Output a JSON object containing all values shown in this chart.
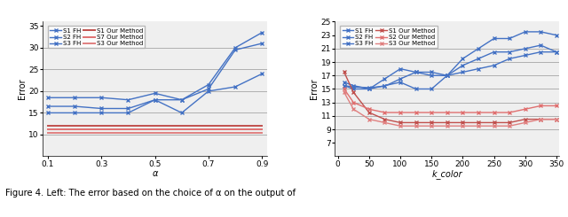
{
  "left": {
    "xlabel": "α",
    "ylabel": "Error",
    "xlim": [
      0.08,
      0.92
    ],
    "ylim": [
      5,
      36
    ],
    "xticks": [
      0.1,
      0.3,
      0.5,
      0.7,
      0.9
    ],
    "yticks": [
      10,
      15,
      20,
      25,
      30,
      35
    ],
    "grid_y": [
      10,
      15,
      20,
      25,
      30
    ],
    "blue_lines": {
      "S1_FH": {
        "x": [
          0.1,
          0.2,
          0.3,
          0.4,
          0.5,
          0.6,
          0.7,
          0.8,
          0.9
        ],
        "y": [
          18.5,
          18.5,
          18.5,
          18.0,
          19.5,
          18.0,
          21.5,
          30.0,
          33.5
        ]
      },
      "S2_FH": {
        "x": [
          0.1,
          0.2,
          0.3,
          0.4,
          0.5,
          0.6,
          0.7,
          0.8,
          0.9
        ],
        "y": [
          16.5,
          16.5,
          16.0,
          16.0,
          18.0,
          18.0,
          20.5,
          29.5,
          31.0
        ]
      },
      "S3_FH": {
        "x": [
          0.1,
          0.2,
          0.3,
          0.4,
          0.5,
          0.6,
          0.7,
          0.8,
          0.9
        ],
        "y": [
          15.0,
          15.0,
          15.0,
          15.0,
          18.0,
          15.0,
          20.0,
          21.0,
          24.0
        ]
      }
    },
    "red_lines": {
      "S1_OM": {
        "x": [
          0.1,
          0.9
        ],
        "y": [
          12.0,
          12.0
        ]
      },
      "S7_OM": {
        "x": [
          0.1,
          0.9
        ],
        "y": [
          11.2,
          11.2
        ]
      },
      "S3_OM": {
        "x": [
          0.1,
          0.9
        ],
        "y": [
          10.3,
          10.3
        ]
      }
    },
    "legend_labels_blue": [
      "S1 FH",
      "S2 FH",
      "S3 FH"
    ],
    "legend_labels_red": [
      "S1 Our Method",
      "S7 Our Method",
      "S3 Our Method"
    ]
  },
  "right": {
    "xlabel": "k_color",
    "ylabel": "Error",
    "xlim": [
      -5,
      355
    ],
    "ylim": [
      5,
      25
    ],
    "xticks": [
      0,
      50,
      100,
      150,
      200,
      250,
      300,
      350
    ],
    "yticks": [
      7,
      9,
      11,
      13,
      15,
      17,
      19,
      21,
      23,
      25
    ],
    "grid_y": [
      9,
      11,
      13,
      15,
      17,
      19,
      21
    ],
    "blue_lines": {
      "S1_FH": {
        "x": [
          10,
          25,
          50,
          75,
          100,
          125,
          150,
          175,
          200,
          225,
          250,
          275,
          300,
          325,
          350
        ],
        "y": [
          15.5,
          15.3,
          15.2,
          15.4,
          16.5,
          17.5,
          17.0,
          17.0,
          19.5,
          21.0,
          22.5,
          22.5,
          23.5,
          23.5,
          23.0
        ]
      },
      "S2_FH": {
        "x": [
          10,
          25,
          50,
          75,
          100,
          125,
          150,
          175,
          200,
          225,
          250,
          275,
          300,
          325,
          350
        ],
        "y": [
          15.5,
          15.0,
          15.0,
          15.5,
          16.0,
          15.0,
          15.0,
          17.0,
          18.5,
          19.5,
          20.5,
          20.5,
          21.0,
          21.5,
          20.5
        ]
      },
      "S3_FH": {
        "x": [
          10,
          25,
          50,
          75,
          100,
          125,
          150,
          175,
          200,
          225,
          250,
          275,
          300,
          325,
          350
        ],
        "y": [
          16.0,
          15.5,
          15.0,
          16.5,
          18.0,
          17.5,
          17.5,
          17.0,
          17.5,
          18.0,
          18.5,
          19.5,
          20.0,
          20.5,
          20.5
        ]
      }
    },
    "red_lines": {
      "S1_OM": {
        "x": [
          10,
          25,
          50,
          75,
          100,
          125,
          150,
          175,
          200,
          225,
          250,
          275,
          300,
          325,
          350
        ],
        "y": [
          17.5,
          14.5,
          11.5,
          10.5,
          10.0,
          10.0,
          10.0,
          10.0,
          10.0,
          10.0,
          10.0,
          10.0,
          10.5,
          10.5,
          10.5
        ]
      },
      "S2_OM": {
        "x": [
          10,
          25,
          50,
          75,
          100,
          125,
          150,
          175,
          200,
          225,
          250,
          275,
          300,
          325,
          350
        ],
        "y": [
          15.0,
          13.0,
          12.0,
          11.5,
          11.5,
          11.5,
          11.5,
          11.5,
          11.5,
          11.5,
          11.5,
          11.5,
          12.0,
          12.5,
          12.5
        ]
      },
      "S3_OM": {
        "x": [
          10,
          25,
          50,
          75,
          100,
          125,
          150,
          175,
          200,
          225,
          250,
          275,
          300,
          325,
          350
        ],
        "y": [
          14.5,
          12.0,
          10.5,
          10.0,
          9.5,
          9.5,
          9.5,
          9.5,
          9.5,
          9.5,
          9.5,
          9.5,
          10.0,
          10.5,
          10.5
        ]
      }
    },
    "legend_labels_blue": [
      "S1 FH",
      "S2 FH",
      "S3 FH"
    ],
    "legend_labels_red": [
      "S1 Our Method",
      "S2 Our Method",
      "S3 Our Method"
    ]
  },
  "caption": "Figure 4. Left: The error based on the choice of α on the output of",
  "blue_color": "#4472C4",
  "red_colors": [
    "#C0504D",
    "#E07070",
    "#E08080"
  ],
  "bg_color": "#EFEFEF",
  "marker": "x",
  "linewidth": 1.0,
  "fontsize": 6.5
}
